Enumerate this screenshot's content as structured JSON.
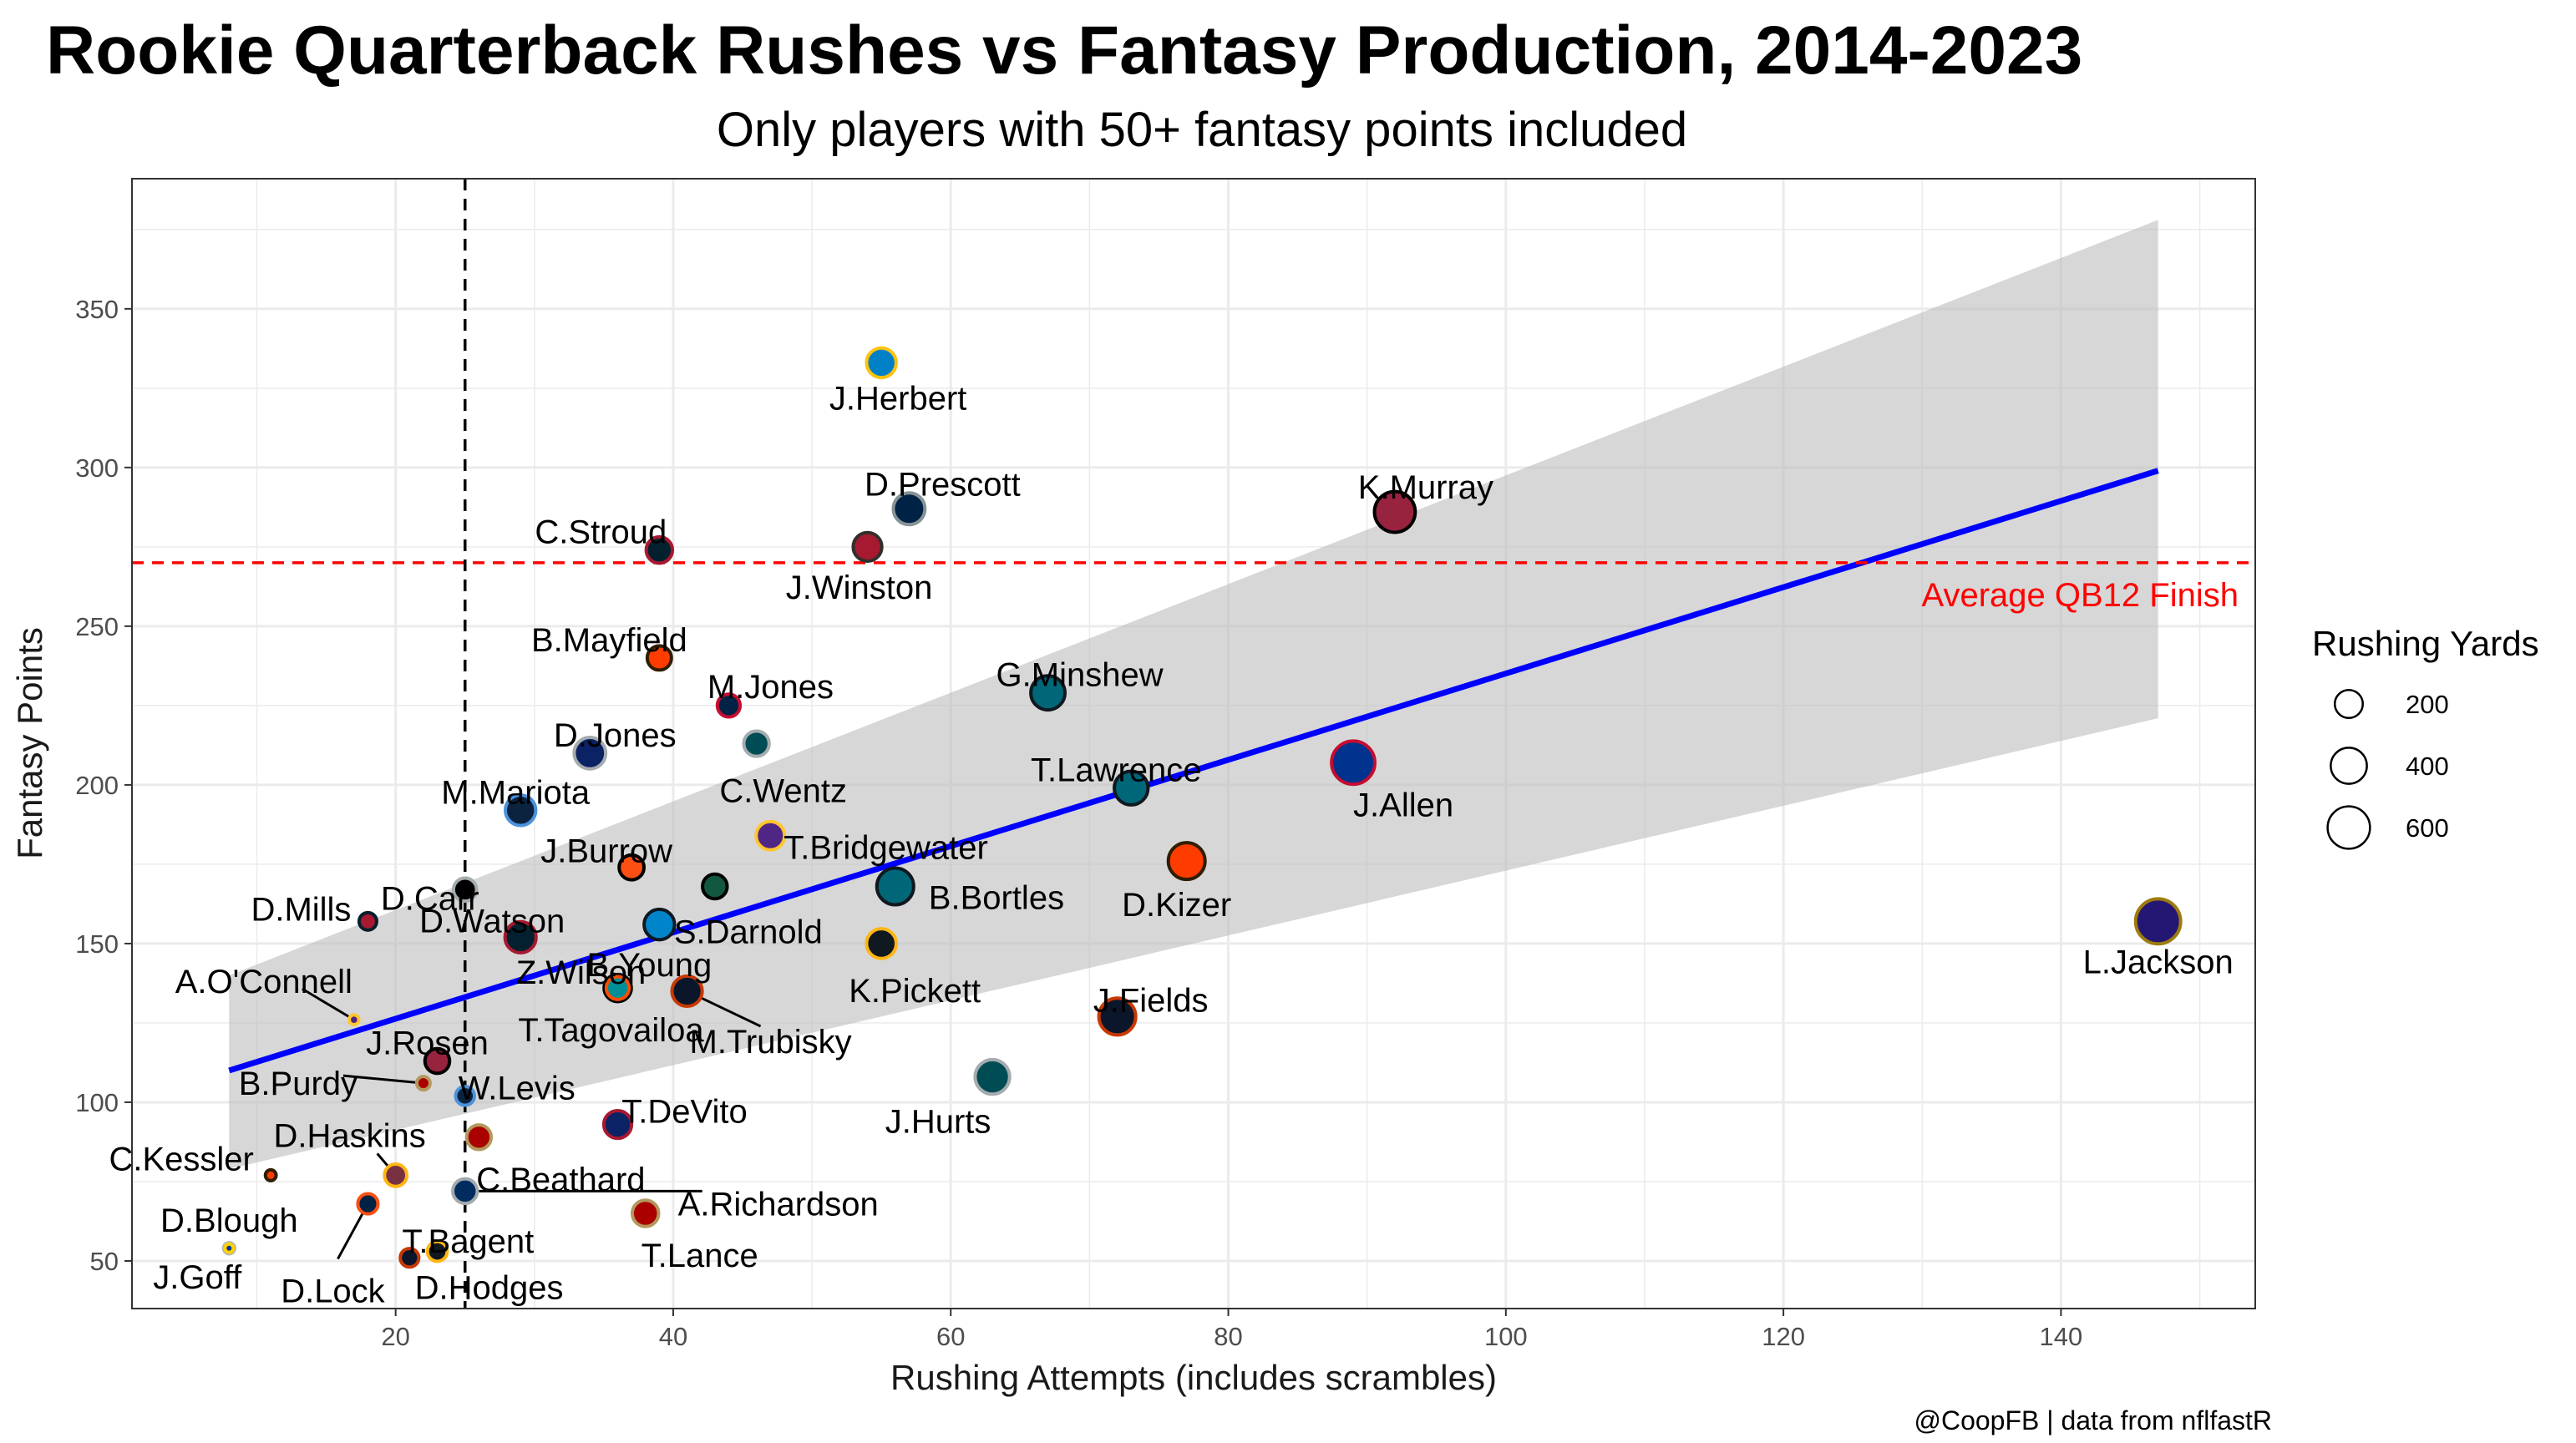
{
  "title": "Rookie Quarterback Rushes vs Fantasy Production, 2014-2023",
  "subtitle": "Only players with 50+ fantasy points included",
  "caption": "@CoopFB | data from nflfastR",
  "colors": {
    "trend": "#0000ff",
    "ribbon": "#bdbdbd",
    "reference_line": "#ff0000",
    "panel_border": "#333333",
    "grid": "#ebebeb"
  },
  "chart_data": {
    "type": "scatter",
    "xlabel": "Rushing Attempts (includes scrambles)",
    "ylabel": "Fantasy Points",
    "xlim": [
      1,
      154
    ],
    "ylim": [
      35,
      391
    ],
    "x_ticks": [
      20,
      40,
      60,
      80,
      100,
      120,
      140
    ],
    "y_ticks": [
      50,
      100,
      150,
      200,
      250,
      300,
      350
    ],
    "grid": true,
    "size_legend": {
      "title": "Rushing Yards",
      "placement": "right",
      "entries": [
        {
          "label": "200",
          "value": 200
        },
        {
          "label": "400",
          "value": 400
        },
        {
          "label": "600",
          "value": 600
        }
      ]
    },
    "reference_lines": [
      {
        "orientation": "horizontal",
        "value": 270,
        "label": "Average QB12 Finish",
        "color": "#ff0000"
      },
      {
        "orientation": "vertical",
        "value": 25,
        "label": "",
        "color": "#000000"
      }
    ],
    "trend": {
      "x": [
        8,
        147
      ],
      "y": [
        110,
        299
      ],
      "band_lower": [
        79,
        221
      ],
      "band_upper": [
        140,
        378
      ]
    },
    "points": [
      {
        "name": "J.Herbert",
        "x": 55,
        "y": 333,
        "rush_yards": 234,
        "fill": "#0080c6",
        "stroke": "#ffc20e"
      },
      {
        "name": "D.Prescott",
        "x": 57,
        "y": 287,
        "rush_yards": 282,
        "fill": "#002244",
        "stroke": "#869397"
      },
      {
        "name": "K.Murray",
        "x": 92,
        "y": 286,
        "rush_yards": 544,
        "fill": "#97233f",
        "stroke": "#000000"
      },
      {
        "name": "C.Stroud",
        "x": 39,
        "y": 274,
        "rush_yards": 167,
        "fill": "#03202f",
        "stroke": "#a71930"
      },
      {
        "name": "J.Winston",
        "x": 54,
        "y": 275,
        "rush_yards": 213,
        "fill": "#a71930",
        "stroke": "#322f2b"
      },
      {
        "name": "B.Mayfield",
        "x": 39,
        "y": 240,
        "rush_yards": 131,
        "fill": "#ff3c00",
        "stroke": "#311d00"
      },
      {
        "name": "G.Minshew",
        "x": 67,
        "y": 229,
        "rush_yards": 344,
        "fill": "#006778",
        "stroke": "#101820"
      },
      {
        "name": "M.Jones",
        "x": 44,
        "y": 225,
        "rush_yards": 108,
        "fill": "#002244",
        "stroke": "#c60c30"
      },
      {
        "name": "C.Wentz",
        "x": 46,
        "y": 213,
        "rush_yards": 150,
        "fill": "#004c54",
        "stroke": "#a5acaf"
      },
      {
        "name": "D.Jones",
        "x": 34,
        "y": 210,
        "rush_yards": 279,
        "fill": "#0b2265",
        "stroke": "#a5acaf"
      },
      {
        "name": "T.Lawrence",
        "x": 73,
        "y": 199,
        "rush_yards": 334,
        "fill": "#006778",
        "stroke": "#101820"
      },
      {
        "name": "J.Allen",
        "x": 89,
        "y": 207,
        "rush_yards": 631,
        "fill": "#00338d",
        "stroke": "#c60c30"
      },
      {
        "name": "M.Mariota",
        "x": 29,
        "y": 192,
        "rush_yards": 252,
        "fill": "#0c2340",
        "stroke": "#4b92db"
      },
      {
        "name": "T.Bridgewater",
        "x": 47,
        "y": 184,
        "rush_yards": 209,
        "fill": "#4f2683",
        "stroke": "#ffc62f"
      },
      {
        "name": "D.Kizer",
        "x": 77,
        "y": 176,
        "rush_yards": 419,
        "fill": "#ff3c00",
        "stroke": "#311d00"
      },
      {
        "name": "J.Burrow",
        "x": 37,
        "y": 174,
        "rush_yards": 142,
        "fill": "#fb4f14",
        "stroke": "#000000"
      },
      {
        "name": "D.Carr",
        "x": 25,
        "y": 167,
        "rush_yards": 113,
        "fill": "#000000",
        "stroke": "#a5acaf"
      },
      {
        "name": "D.Mills",
        "x": 18,
        "y": 157,
        "rush_yards": 44,
        "fill": "#a71930",
        "stroke": "#03202f"
      },
      {
        "name": "B.Bortles",
        "x": 56,
        "y": 168,
        "rush_yards": 419,
        "fill": "#006778",
        "stroke": "#101820"
      },
      {
        "name": "S.Darnold",
        "x": 43,
        "y": 168,
        "rush_yards": 138,
        "fill": "#125740",
        "stroke": "#000000"
      },
      {
        "name": "D.Watson",
        "x": 29,
        "y": 152,
        "rush_yards": 269,
        "fill": "#03202f",
        "stroke": "#a71930"
      },
      {
        "name": "B.Young",
        "x": 39,
        "y": 156,
        "rush_yards": 253,
        "fill": "#0085ca",
        "stroke": "#101820"
      },
      {
        "name": "K.Pickett",
        "x": 55,
        "y": 150,
        "rush_yards": 237,
        "fill": "#101820",
        "stroke": "#ffb612"
      },
      {
        "name": "A.O'Connell",
        "x": 17,
        "y": 126,
        "rush_yards": 1,
        "fill": "#4f2683",
        "stroke": "#ffc62f"
      },
      {
        "name": "Z.Wilson",
        "x": 36,
        "y": 136,
        "rush_yards": 185,
        "fill": "#125740",
        "stroke": "#000000"
      },
      {
        "name": "J.Rosen",
        "x": 23,
        "y": 113,
        "rush_yards": 138,
        "fill": "#97233f",
        "stroke": "#000000"
      },
      {
        "name": "T.Tagovailoa",
        "x": 36,
        "y": 136,
        "rush_yards": 109,
        "fill": "#008e97",
        "stroke": "#fc4c02"
      },
      {
        "name": "M.Trubisky",
        "x": 41,
        "y": 135,
        "rush_yards": 248,
        "fill": "#0b162a",
        "stroke": "#c83803"
      },
      {
        "name": "J.Fields",
        "x": 72,
        "y": 127,
        "rush_yards": 420,
        "fill": "#0b162a",
        "stroke": "#c83803"
      },
      {
        "name": "L.Jackson",
        "x": 147,
        "y": 157,
        "rush_yards": 695,
        "fill": "#241773",
        "stroke": "#9e7c0c"
      },
      {
        "name": "J.Hurts",
        "x": 63,
        "y": 108,
        "rush_yards": 354,
        "fill": "#004c54",
        "stroke": "#a5acaf"
      },
      {
        "name": "B.Purdy",
        "x": 22,
        "y": 106,
        "rush_yards": 13,
        "fill": "#aa0000",
        "stroke": "#b3995d"
      },
      {
        "name": "W.Levis",
        "x": 25,
        "y": 102,
        "rush_yards": 57,
        "fill": "#0c2340",
        "stroke": "#4b92db"
      },
      {
        "name": "T.DeVito",
        "x": 36,
        "y": 93,
        "rush_yards": 195,
        "fill": "#0b2265",
        "stroke": "#a71930"
      },
      {
        "name": "D.Haskins",
        "x": 20,
        "y": 77,
        "rush_yards": 101,
        "fill": "#773141",
        "stroke": "#ffb612"
      },
      {
        "name": "C.Kessler",
        "x": 11,
        "y": 77,
        "rush_yards": 3,
        "fill": "#ff3c00",
        "stroke": "#311d00"
      },
      {
        "name": "C.Beathard",
        "x": 26,
        "y": 89,
        "rush_yards": 136,
        "fill": "#aa0000",
        "stroke": "#b3995d"
      },
      {
        "name": "A.Richardson",
        "x": 25,
        "y": 72,
        "rush_yards": 136,
        "fill": "#002c5f",
        "stroke": "#a2aaad"
      },
      {
        "name": "D.Blough",
        "x": 8,
        "y": 54,
        "rush_yards": 4,
        "fill": "#0076b6",
        "stroke": "#b0b7bc"
      },
      {
        "name": "D.Lock",
        "x": 18,
        "y": 68,
        "rush_yards": 72,
        "fill": "#002244",
        "stroke": "#fb4f14"
      },
      {
        "name": "T.Bagent",
        "x": 21,
        "y": 51,
        "rush_yards": 54,
        "fill": "#0b162a",
        "stroke": "#c83803"
      },
      {
        "name": "D.Hodges",
        "x": 23,
        "y": 53,
        "rush_yards": 68,
        "fill": "#101820",
        "stroke": "#ffb612"
      },
      {
        "name": "T.Lance",
        "x": 38,
        "y": 65,
        "rush_yards": 168,
        "fill": "#aa0000",
        "stroke": "#b3995d"
      },
      {
        "name": "J.Goff",
        "x": 8,
        "y": 54,
        "rush_yards": -3,
        "fill": "#003594",
        "stroke": "#ffd100"
      }
    ]
  }
}
